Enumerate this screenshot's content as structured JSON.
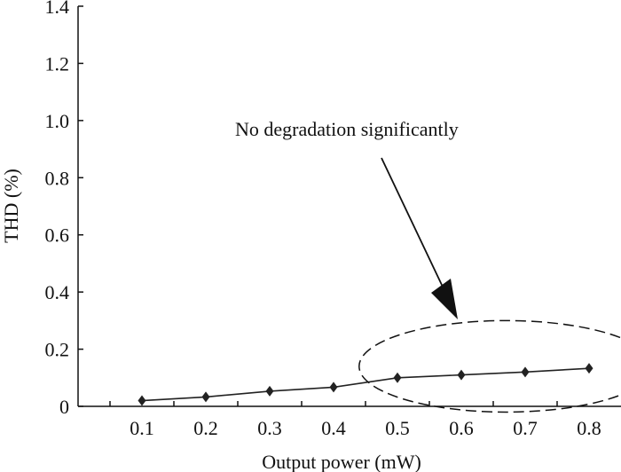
{
  "chart_data": {
    "type": "line",
    "xlabel": "Output power (mW)",
    "ylabel": "THD (%)",
    "x": [
      0.1,
      0.2,
      0.3,
      0.4,
      0.5,
      0.6,
      0.7,
      0.8
    ],
    "x_tick_labels": [
      "0.1",
      "0.2",
      "0.3",
      "0.4",
      "0.5",
      "0.6",
      "0.7",
      "0.8"
    ],
    "xlim": [
      0.0,
      0.85
    ],
    "ylim": [
      0,
      1.4
    ],
    "y_ticks": [
      0,
      0.2,
      0.4,
      0.6,
      0.8,
      1.0,
      1.2,
      1.4
    ],
    "y_tick_labels": [
      "0",
      "0.2",
      "0.4",
      "0.6",
      "0.8",
      "1.0",
      "1.2",
      "1.4"
    ],
    "series": [
      {
        "values": [
          0.02,
          0.033,
          0.053,
          0.067,
          0.1,
          0.11,
          0.12,
          0.133
        ],
        "marker": "diamond",
        "color": "#222222"
      }
    ],
    "annotation": {
      "text": "No degradation significantly",
      "ellipse_center": [
        0.67,
        0.14
      ],
      "ellipse_radius": [
        0.23,
        0.16
      ]
    },
    "grid": false
  }
}
